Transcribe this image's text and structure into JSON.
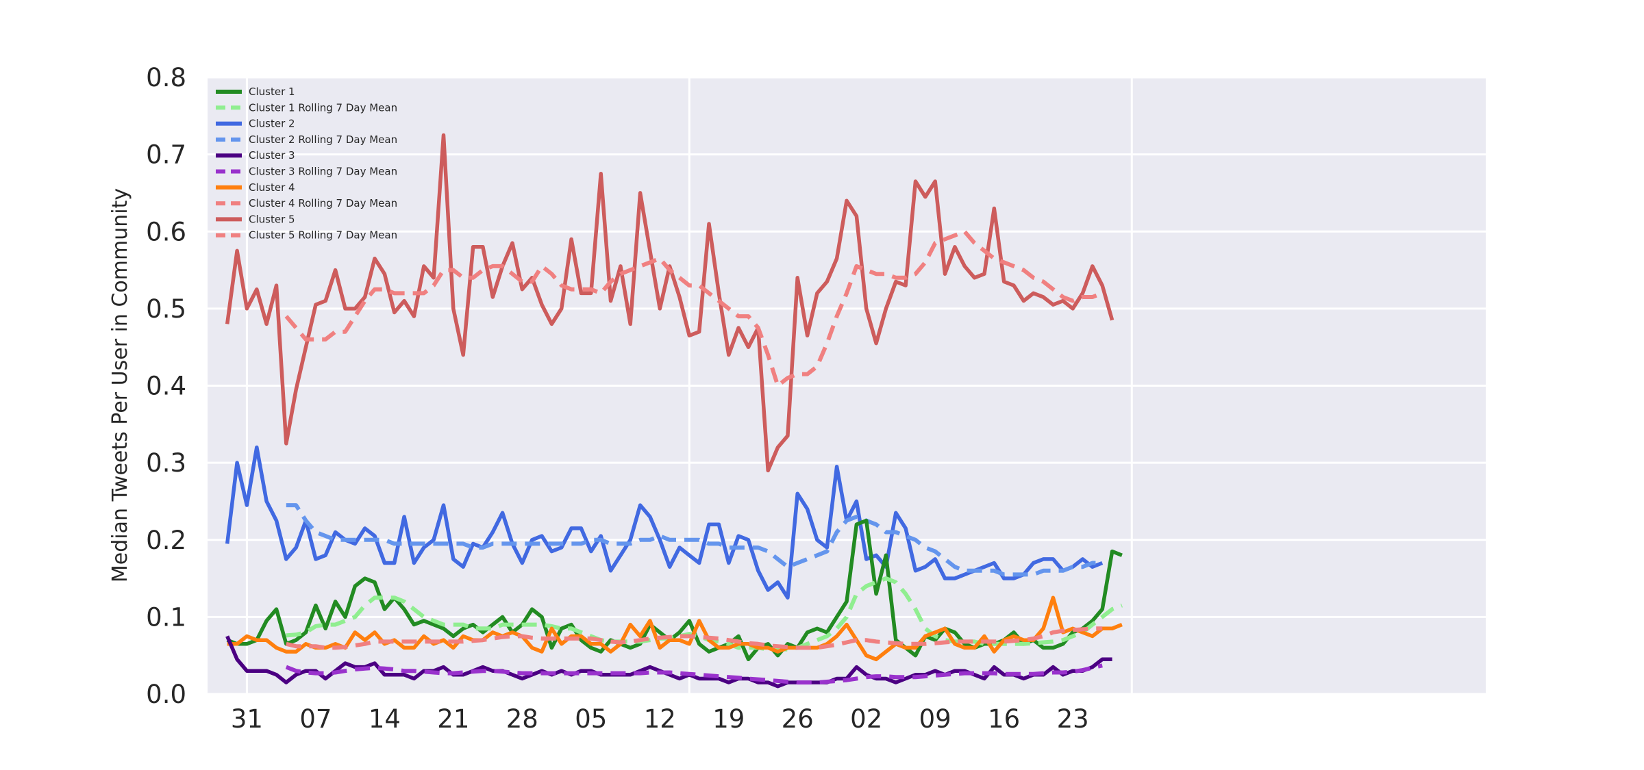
{
  "chart_data": {
    "type": "line",
    "title": "",
    "xlabel": "",
    "ylabel": "Median Tweets Per User in Community",
    "ylim": [
      0.0,
      0.8
    ],
    "yticks": [
      "0.0",
      "0.1",
      "0.2",
      "0.3",
      "0.4",
      "0.5",
      "0.6",
      "0.7",
      "0.8"
    ],
    "xlim_days": [
      -2,
      128
    ],
    "xticks": [
      {
        "label": "31",
        "day": 2
      },
      {
        "label": "07",
        "day": 9
      },
      {
        "label": "14",
        "day": 16
      },
      {
        "label": "21",
        "day": 23
      },
      {
        "label": "28",
        "day": 30
      },
      {
        "label": "05",
        "day": 37
      },
      {
        "label": "12",
        "day": 44
      },
      {
        "label": "19",
        "day": 51
      },
      {
        "label": "26",
        "day": 58
      },
      {
        "label": "02",
        "day": 65
      },
      {
        "label": "09",
        "day": 72
      },
      {
        "label": "16",
        "day": 79
      },
      {
        "label": "23",
        "day": 86
      }
    ],
    "major_grid_days": [
      2,
      47,
      92
    ],
    "grid": true,
    "legend": "top-left",
    "series": [
      {
        "name": "Cluster 1",
        "color": "#228B22",
        "style": "solid",
        "values": [
          0.07,
          0.065,
          0.065,
          0.07,
          0.095,
          0.11,
          0.065,
          0.07,
          0.08,
          0.115,
          0.085,
          0.12,
          0.1,
          0.14,
          0.15,
          0.145,
          0.11,
          0.125,
          0.11,
          0.09,
          0.095,
          0.09,
          0.085,
          0.075,
          0.085,
          0.09,
          0.08,
          0.09,
          0.1,
          0.08,
          0.09,
          0.11,
          0.1,
          0.06,
          0.085,
          0.09,
          0.07,
          0.06,
          0.055,
          0.07,
          0.065,
          0.06,
          0.065,
          0.09,
          0.08,
          0.07,
          0.08,
          0.095,
          0.065,
          0.055,
          0.06,
          0.065,
          0.075,
          0.045,
          0.06,
          0.065,
          0.05,
          0.065,
          0.06,
          0.08,
          0.085,
          0.08,
          0.1,
          0.12,
          0.22,
          0.225,
          0.13,
          0.18,
          0.07,
          0.06,
          0.05,
          0.075,
          0.07,
          0.085,
          0.08,
          0.065,
          0.06,
          0.065,
          0.065,
          0.07,
          0.08,
          0.065,
          0.07,
          0.06,
          0.06,
          0.065,
          0.08,
          0.085,
          0.095,
          0.11,
          0.185,
          0.18
        ]
      },
      {
        "name": "Cluster 1 Rolling 7 Day Mean",
        "color": "#90EE90",
        "style": "dashed",
        "values": [
          null,
          null,
          null,
          null,
          null,
          null,
          0.076,
          0.077,
          0.08,
          0.088,
          0.09,
          0.09,
          0.095,
          0.1,
          0.115,
          0.125,
          0.125,
          0.125,
          0.12,
          0.11,
          0.1,
          0.095,
          0.09,
          0.09,
          0.09,
          0.085,
          0.085,
          0.085,
          0.09,
          0.09,
          0.09,
          0.09,
          0.09,
          0.088,
          0.085,
          0.085,
          0.08,
          0.075,
          0.07,
          0.068,
          0.068,
          0.068,
          0.068,
          0.07,
          0.072,
          0.072,
          0.075,
          0.078,
          0.075,
          0.07,
          0.068,
          0.065,
          0.06,
          0.06,
          0.06,
          0.058,
          0.058,
          0.058,
          0.06,
          0.065,
          0.07,
          0.075,
          0.085,
          0.1,
          0.13,
          0.14,
          0.145,
          0.15,
          0.145,
          0.13,
          0.11,
          0.085,
          0.075,
          0.07,
          0.068,
          0.068,
          0.068,
          0.065,
          0.065,
          0.065,
          0.065,
          0.065,
          0.066,
          0.067,
          0.068,
          0.07,
          0.075,
          0.08,
          0.09,
          0.1,
          0.11,
          0.115
        ]
      },
      {
        "name": "Cluster 2",
        "color": "#4169E1",
        "style": "solid",
        "values": [
          0.195,
          0.3,
          0.245,
          0.32,
          0.25,
          0.225,
          0.175,
          0.19,
          0.225,
          0.175,
          0.18,
          0.21,
          0.2,
          0.195,
          0.215,
          0.205,
          0.17,
          0.17,
          0.23,
          0.17,
          0.19,
          0.2,
          0.245,
          0.175,
          0.165,
          0.195,
          0.19,
          0.21,
          0.235,
          0.195,
          0.17,
          0.2,
          0.205,
          0.185,
          0.19,
          0.215,
          0.215,
          0.185,
          0.205,
          0.16,
          0.18,
          0.2,
          0.245,
          0.23,
          0.2,
          0.165,
          0.19,
          0.18,
          0.17,
          0.22,
          0.22,
          0.17,
          0.205,
          0.2,
          0.16,
          0.135,
          0.145,
          0.125,
          0.26,
          0.24,
          0.2,
          0.19,
          0.295,
          0.225,
          0.25,
          0.175,
          0.18,
          0.165,
          0.235,
          0.215,
          0.16,
          0.165,
          0.175,
          0.15,
          0.15,
          0.155,
          0.16,
          0.165,
          0.17,
          0.15,
          0.15,
          0.155,
          0.17,
          0.175,
          0.175,
          0.16,
          0.165,
          0.175,
          0.165,
          0.17
        ]
      },
      {
        "name": "Cluster 2 Rolling 7 Day Mean",
        "color": "#6495ED",
        "style": "dashed",
        "values": [
          null,
          null,
          null,
          null,
          null,
          null,
          0.245,
          0.245,
          0.225,
          0.21,
          0.205,
          0.2,
          0.2,
          0.2,
          0.2,
          0.2,
          0.2,
          0.195,
          0.195,
          0.195,
          0.195,
          0.195,
          0.195,
          0.195,
          0.195,
          0.19,
          0.19,
          0.195,
          0.195,
          0.195,
          0.195,
          0.195,
          0.195,
          0.195,
          0.195,
          0.195,
          0.195,
          0.2,
          0.2,
          0.195,
          0.195,
          0.195,
          0.2,
          0.2,
          0.205,
          0.2,
          0.2,
          0.2,
          0.2,
          0.195,
          0.195,
          0.19,
          0.19,
          0.19,
          0.19,
          0.185,
          0.175,
          0.165,
          0.17,
          0.175,
          0.18,
          0.185,
          0.21,
          0.225,
          0.23,
          0.225,
          0.22,
          0.21,
          0.21,
          0.205,
          0.2,
          0.19,
          0.185,
          0.175,
          0.165,
          0.16,
          0.16,
          0.16,
          0.16,
          0.155,
          0.155,
          0.155,
          0.155,
          0.16,
          0.16,
          0.16,
          0.165,
          0.165,
          0.17,
          0.17
        ]
      },
      {
        "name": "Cluster 3",
        "color": "#4B0082",
        "style": "solid",
        "values": [
          0.075,
          0.045,
          0.03,
          0.03,
          0.03,
          0.025,
          0.015,
          0.025,
          0.03,
          0.03,
          0.02,
          0.03,
          0.04,
          0.035,
          0.035,
          0.04,
          0.025,
          0.025,
          0.025,
          0.02,
          0.03,
          0.03,
          0.035,
          0.025,
          0.025,
          0.03,
          0.035,
          0.03,
          0.03,
          0.025,
          0.02,
          0.025,
          0.03,
          0.025,
          0.03,
          0.025,
          0.03,
          0.03,
          0.025,
          0.025,
          0.025,
          0.025,
          0.03,
          0.035,
          0.03,
          0.025,
          0.02,
          0.025,
          0.02,
          0.02,
          0.02,
          0.015,
          0.02,
          0.02,
          0.015,
          0.015,
          0.01,
          0.015,
          0.015,
          0.015,
          0.015,
          0.015,
          0.02,
          0.02,
          0.035,
          0.025,
          0.02,
          0.02,
          0.015,
          0.02,
          0.025,
          0.025,
          0.03,
          0.025,
          0.03,
          0.03,
          0.025,
          0.02,
          0.035,
          0.025,
          0.025,
          0.02,
          0.025,
          0.025,
          0.035,
          0.025,
          0.03,
          0.03,
          0.035,
          0.045,
          0.045
        ]
      },
      {
        "name": "Cluster 3 Rolling 7 Day Mean",
        "color": "#9932CC",
        "style": "dashed",
        "values": [
          null,
          null,
          null,
          null,
          null,
          null,
          0.035,
          0.03,
          0.028,
          0.027,
          0.027,
          0.028,
          0.03,
          0.032,
          0.033,
          0.034,
          0.033,
          0.032,
          0.03,
          0.03,
          0.029,
          0.028,
          0.027,
          0.027,
          0.028,
          0.029,
          0.03,
          0.03,
          0.029,
          0.028,
          0.027,
          0.027,
          0.027,
          0.027,
          0.027,
          0.027,
          0.027,
          0.027,
          0.027,
          0.027,
          0.027,
          0.027,
          0.027,
          0.028,
          0.028,
          0.028,
          0.027,
          0.026,
          0.025,
          0.024,
          0.023,
          0.022,
          0.021,
          0.02,
          0.019,
          0.018,
          0.017,
          0.016,
          0.015,
          0.015,
          0.015,
          0.016,
          0.017,
          0.018,
          0.02,
          0.022,
          0.023,
          0.023,
          0.022,
          0.022,
          0.022,
          0.023,
          0.024,
          0.025,
          0.026,
          0.027,
          0.027,
          0.027,
          0.027,
          0.026,
          0.026,
          0.026,
          0.026,
          0.027,
          0.028,
          0.028,
          0.029,
          0.031,
          0.034,
          0.037
        ]
      },
      {
        "name": "Cluster 4",
        "color": "#FF7F0E",
        "style": "solid",
        "values": [
          0.065,
          0.065,
          0.075,
          0.07,
          0.07,
          0.06,
          0.055,
          0.055,
          0.065,
          0.06,
          0.06,
          0.065,
          0.06,
          0.08,
          0.07,
          0.08,
          0.065,
          0.07,
          0.06,
          0.06,
          0.075,
          0.065,
          0.07,
          0.06,
          0.075,
          0.07,
          0.07,
          0.08,
          0.075,
          0.08,
          0.075,
          0.06,
          0.055,
          0.085,
          0.065,
          0.075,
          0.075,
          0.065,
          0.065,
          0.055,
          0.065,
          0.09,
          0.075,
          0.095,
          0.06,
          0.07,
          0.07,
          0.065,
          0.095,
          0.07,
          0.06,
          0.06,
          0.065,
          0.065,
          0.06,
          0.06,
          0.055,
          0.06,
          0.06,
          0.06,
          0.06,
          0.065,
          0.075,
          0.09,
          0.07,
          0.05,
          0.045,
          0.055,
          0.065,
          0.06,
          0.06,
          0.075,
          0.08,
          0.085,
          0.065,
          0.06,
          0.06,
          0.075,
          0.055,
          0.07,
          0.075,
          0.07,
          0.07,
          0.085,
          0.125,
          0.08,
          0.085,
          0.08,
          0.075,
          0.085,
          0.085,
          0.09
        ]
      },
      {
        "name": "Cluster 4 Rolling 7 Day Mean",
        "color": "#F08080",
        "style": "dashed",
        "values": [
          null,
          null,
          null,
          null,
          null,
          null,
          0.065,
          0.062,
          0.062,
          0.062,
          0.06,
          0.06,
          0.061,
          0.063,
          0.065,
          0.068,
          0.068,
          0.068,
          0.068,
          0.068,
          0.068,
          0.068,
          0.068,
          0.068,
          0.068,
          0.069,
          0.07,
          0.072,
          0.074,
          0.075,
          0.075,
          0.073,
          0.072,
          0.072,
          0.072,
          0.072,
          0.072,
          0.072,
          0.07,
          0.068,
          0.067,
          0.068,
          0.07,
          0.072,
          0.073,
          0.074,
          0.075,
          0.075,
          0.074,
          0.073,
          0.072,
          0.07,
          0.068,
          0.066,
          0.065,
          0.063,
          0.062,
          0.061,
          0.06,
          0.06,
          0.06,
          0.062,
          0.064,
          0.067,
          0.07,
          0.07,
          0.068,
          0.067,
          0.066,
          0.065,
          0.065,
          0.065,
          0.066,
          0.067,
          0.068,
          0.068,
          0.068,
          0.068,
          0.068,
          0.068,
          0.069,
          0.07,
          0.072,
          0.075,
          0.08,
          0.082,
          0.083,
          0.084,
          0.085,
          0.085
        ]
      },
      {
        "name": "Cluster 5",
        "color": "#CD5C5C",
        "style": "solid",
        "values": [
          0.48,
          0.575,
          0.5,
          0.525,
          0.48,
          0.53,
          0.325,
          0.395,
          0.45,
          0.505,
          0.51,
          0.55,
          0.5,
          0.5,
          0.515,
          0.565,
          0.545,
          0.495,
          0.51,
          0.49,
          0.555,
          0.54,
          0.725,
          0.5,
          0.44,
          0.58,
          0.58,
          0.515,
          0.555,
          0.585,
          0.525,
          0.54,
          0.505,
          0.48,
          0.5,
          0.59,
          0.52,
          0.52,
          0.675,
          0.51,
          0.555,
          0.48,
          0.65,
          0.575,
          0.5,
          0.555,
          0.515,
          0.465,
          0.47,
          0.61,
          0.52,
          0.44,
          0.475,
          0.45,
          0.475,
          0.29,
          0.32,
          0.335,
          0.54,
          0.465,
          0.52,
          0.535,
          0.565,
          0.64,
          0.62,
          0.5,
          0.455,
          0.5,
          0.535,
          0.53,
          0.665,
          0.645,
          0.665,
          0.545,
          0.58,
          0.555,
          0.54,
          0.545,
          0.63,
          0.535,
          0.53,
          0.51,
          0.52,
          0.515,
          0.505,
          0.51,
          0.5,
          0.52,
          0.555,
          0.53,
          0.485
        ]
      },
      {
        "name": "Cluster 5 Rolling 7 Day Mean",
        "color": "#F08080",
        "style": "dashed",
        "values": [
          null,
          null,
          null,
          null,
          null,
          null,
          0.49,
          0.475,
          0.46,
          0.46,
          0.46,
          0.47,
          0.47,
          0.49,
          0.51,
          0.525,
          0.525,
          0.52,
          0.52,
          0.52,
          0.52,
          0.53,
          0.55,
          0.55,
          0.54,
          0.54,
          0.55,
          0.555,
          0.555,
          0.545,
          0.535,
          0.535,
          0.555,
          0.545,
          0.53,
          0.525,
          0.525,
          0.525,
          0.52,
          0.535,
          0.545,
          0.55,
          0.555,
          0.56,
          0.565,
          0.55,
          0.54,
          0.53,
          0.53,
          0.52,
          0.51,
          0.5,
          0.49,
          0.49,
          0.475,
          0.44,
          0.4,
          0.41,
          0.415,
          0.415,
          0.425,
          0.455,
          0.49,
          0.52,
          0.555,
          0.55,
          0.545,
          0.545,
          0.54,
          0.54,
          0.545,
          0.56,
          0.585,
          0.59,
          0.595,
          0.6,
          0.585,
          0.575,
          0.565,
          0.56,
          0.555,
          0.55,
          0.54,
          0.535,
          0.525,
          0.515,
          0.51,
          0.515,
          0.515,
          0.52
        ]
      }
    ]
  }
}
